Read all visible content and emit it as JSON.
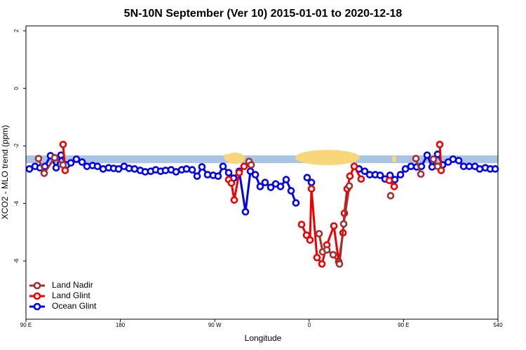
{
  "chart_data": {
    "type": "line",
    "title": "5N-10N September (Ver 10)   2015-01-01 to 2020-12-18",
    "x_label": "Longitude",
    "y_label": "XCO2 - MLO trend (ppm)",
    "xlim": [
      90,
      540
    ],
    "xticks": [
      {
        "value": 90,
        "label": "90 E"
      },
      180,
      {
        "value": 270,
        "label": "90 W"
      },
      {
        "value": 360,
        "label": "0"
      },
      {
        "value": 450,
        "label": "90 E"
      },
      540
    ],
    "ylim": [
      -8.02,
      2.17
    ],
    "yticks": [
      2,
      0,
      -2,
      -4,
      -6
    ],
    "grid": false,
    "legend": "bottom-left",
    "series": [
      {
        "name": "Land Nadir",
        "color": "#a03232",
        "x": [
          102.0,
          107.4,
          117.4,
          125.4,
          null,
          302.7,
          304.7,
          null,
          369.5,
          372.9,
          376.9,
          382.9,
          388.9,
          392.9,
          398.3,
          null,
          437.7,
          null,
          461.8,
          466.5,
          null,
          478.5,
          482.5
        ],
        "values": [
          -2.44,
          -2.95,
          -2.41,
          -2.66,
          null,
          -2.54,
          -2.66,
          null,
          -5.05,
          -5.68,
          -5.61,
          -5.78,
          -6.1,
          -4.71,
          -3.39,
          null,
          -3.73,
          null,
          -2.44,
          -2.98,
          null,
          -2.46,
          -2.71
        ]
      },
      {
        "name": "Land Glint",
        "color": "#ee0000",
        "x": [
          125.4,
          127.4,
          null,
          283.3,
          285.9,
          288.6,
          293.3,
          298.0,
          304.0,
          null,
          352.8,
          357.5,
          360.8,
          362.2,
          367.5,
          372.2,
          376.9,
          383.6,
          388.2,
          392.3,
          393.6,
          396.3,
          398.9,
          403.0,
          409.6,
          null,
          436.4,
          441.1,
          null,
          484.5,
          485.9
        ],
        "values": [
          -1.95,
          -2.85,
          null,
          -3.17,
          -3.29,
          -3.88,
          -2.93,
          -2.71,
          -2.63,
          null,
          -4.73,
          -5.1,
          -5.27,
          -3.49,
          -5.88,
          -6.1,
          -5.44,
          -4.78,
          -6.02,
          -5.02,
          -4.34,
          -3.49,
          -3.05,
          -2.71,
          -3.15,
          null,
          -3.2,
          -3.41,
          null,
          -1.95,
          -2.85
        ]
      },
      {
        "name": "Ocean Glint",
        "color": "#0000ee",
        "x": [
          93.3,
          98.7,
          103.4,
          108.1,
          113.4,
          118.8,
          123.4,
          128.8,
          132.8,
          138.1,
          143.5,
          148.2,
          153.5,
          158.2,
          163.6,
          168.9,
          173.6,
          178.3,
          183.6,
          188.3,
          193.6,
          199.0,
          203.7,
          209.0,
          213.7,
          218.4,
          223.1,
          228.4,
          233.1,
          238.5,
          243.1,
          248.5,
          253.2,
          257.8,
          263.2,
          268.5,
          273.2,
          277.9,
          283.3,
          288.0,
          293.3,
          299.3,
          304.0,
          308.7,
          313.3,
          318.0,
          323.4,
          328.1,
          332.7,
          338.1,
          342.8,
          347.4,
          null,
          358.1,
          362.2,
          null,
          407.6,
          413.0,
          417.7,
          423.0,
          427.7,
          432.4,
          437.1,
          441.7,
          447.1,
          451.8,
          457.1,
          462.5,
          467.1,
          472.5,
          477.2,
          482.5,
          487.2,
          492.6,
          497.2,
          502.6,
          507.3,
          512.6,
          518.0,
          522.6,
          528.0,
          532.7,
          537.4
        ],
        "values": [
          -2.8,
          -2.71,
          -2.76,
          -2.71,
          -2.34,
          -2.76,
          -2.32,
          -2.66,
          -2.59,
          -2.46,
          -2.56,
          -2.71,
          -2.68,
          -2.71,
          -2.8,
          -2.76,
          -2.78,
          -2.8,
          -2.71,
          -2.78,
          -2.8,
          -2.85,
          -2.9,
          -2.88,
          -2.83,
          -2.88,
          -2.85,
          -2.83,
          -2.9,
          -2.83,
          -2.8,
          -2.83,
          -3.05,
          -2.73,
          -3.0,
          -3.02,
          -3.05,
          -2.71,
          -2.93,
          -3.12,
          -2.88,
          -4.29,
          -2.88,
          -3.0,
          -3.41,
          -3.27,
          -3.44,
          -3.32,
          -3.41,
          -3.17,
          -3.56,
          -3.98,
          null,
          -3.1,
          -3.27,
          null,
          -2.8,
          -2.88,
          -3.0,
          -3.0,
          -3.02,
          -3.15,
          -3.02,
          -3.17,
          -3.0,
          -2.8,
          -2.71,
          -2.73,
          -2.71,
          -2.32,
          -2.73,
          -2.29,
          -2.66,
          -2.56,
          -2.46,
          -2.51,
          -2.71,
          -2.71,
          -2.71,
          -2.8,
          -2.76,
          -2.8,
          -2.8
        ]
      }
    ]
  }
}
